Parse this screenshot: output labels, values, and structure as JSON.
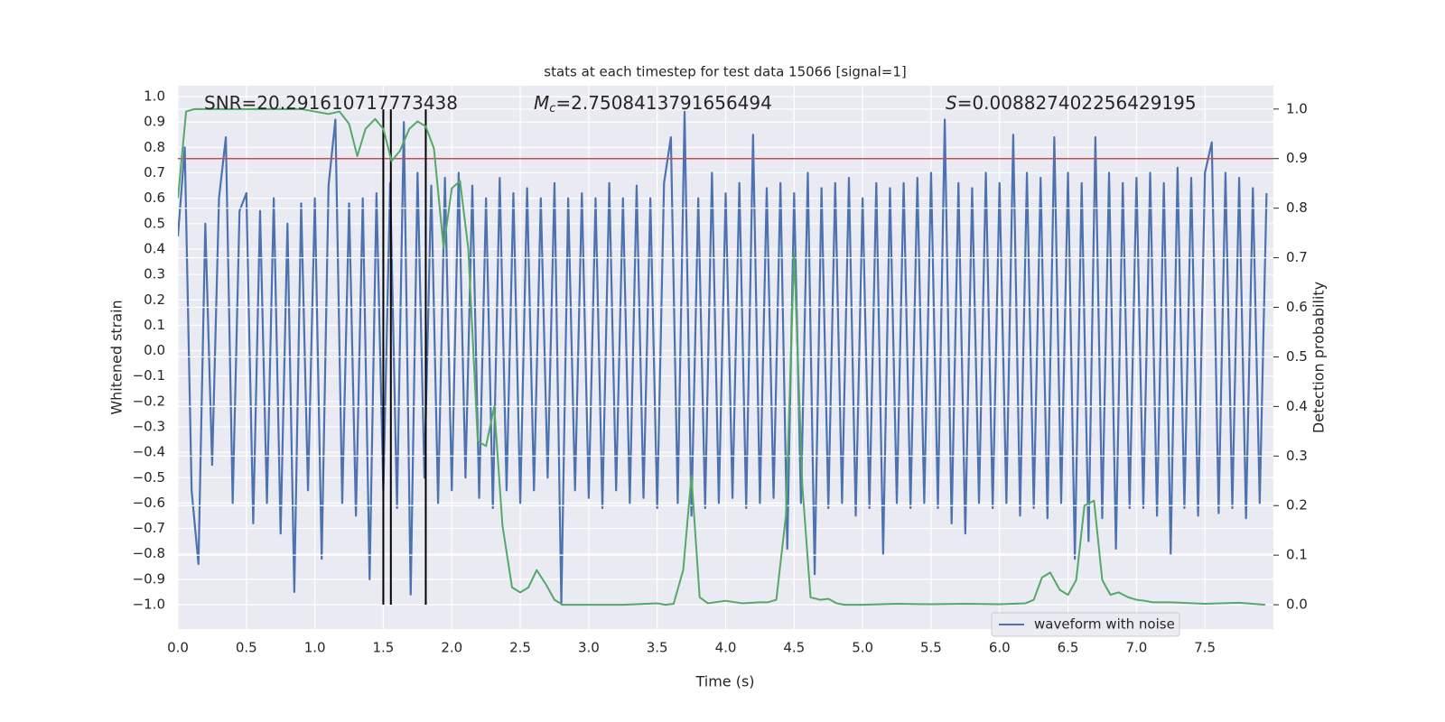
{
  "chart_data": {
    "type": "line",
    "title": "stats at each timestep for test data 15066 [signal=1]",
    "x_label": "Time (s)",
    "y_label": "Whitened strain",
    "y2_label": "Detection probability",
    "annotations": [
      {
        "text": "SNR=20.291610717773438"
      },
      {
        "symbol": "M",
        "subscript": "c",
        "text": "=2.7508413791656494"
      },
      {
        "symbol": "S",
        "text": "=0.008827402256429195"
      }
    ],
    "xlim": [
      0,
      8
    ],
    "ylim": [
      -1.096,
      1.043
    ],
    "y2lim": [
      -0.049,
      1.047
    ],
    "xticks": [
      {
        "value": 0,
        "label": "0.0"
      },
      {
        "value": 0.5,
        "label": "0.5"
      },
      {
        "value": 1,
        "label": "1.0"
      },
      {
        "value": 1.5,
        "label": "1.5"
      },
      {
        "value": 2,
        "label": "2.0"
      },
      {
        "value": 2.5,
        "label": "2.5"
      },
      {
        "value": 3,
        "label": "3.0"
      },
      {
        "value": 3.5,
        "label": "3.5"
      },
      {
        "value": 4,
        "label": "4.0"
      },
      {
        "value": 4.5,
        "label": "4.5"
      },
      {
        "value": 5,
        "label": "5.0"
      },
      {
        "value": 5.5,
        "label": "5.5"
      },
      {
        "value": 6,
        "label": "6.0"
      },
      {
        "value": 6.5,
        "label": "6.5"
      },
      {
        "value": 7,
        "label": "7.0"
      },
      {
        "value": 7.5,
        "label": "7.5"
      }
    ],
    "yticks": [
      {
        "value": -1,
        "label": "−1.0"
      },
      {
        "value": -0.9,
        "label": "−0.9"
      },
      {
        "value": -0.8,
        "label": "−0.8"
      },
      {
        "value": -0.7,
        "label": "−0.7"
      },
      {
        "value": -0.6,
        "label": "−0.6"
      },
      {
        "value": -0.5,
        "label": "−0.5"
      },
      {
        "value": -0.4,
        "label": "−0.4"
      },
      {
        "value": -0.3,
        "label": "−0.3"
      },
      {
        "value": -0.2,
        "label": "−0.2"
      },
      {
        "value": -0.1,
        "label": "−0.1"
      },
      {
        "value": 0,
        "label": "0.0"
      },
      {
        "value": 0.1,
        "label": "0.1"
      },
      {
        "value": 0.2,
        "label": "0.2"
      },
      {
        "value": 0.3,
        "label": "0.3"
      },
      {
        "value": 0.4,
        "label": "0.4"
      },
      {
        "value": 0.5,
        "label": "0.5"
      },
      {
        "value": 0.6,
        "label": "0.6"
      },
      {
        "value": 0.7,
        "label": "0.7"
      },
      {
        "value": 0.8,
        "label": "0.8"
      },
      {
        "value": 0.9,
        "label": "0.9"
      },
      {
        "value": 1,
        "label": "1.0"
      }
    ],
    "y2ticks": [
      {
        "value": 0,
        "label": "0.0"
      },
      {
        "value": 0.1,
        "label": "0.1"
      },
      {
        "value": 0.2,
        "label": "0.2"
      },
      {
        "value": 0.3,
        "label": "0.3"
      },
      {
        "value": 0.4,
        "label": "0.4"
      },
      {
        "value": 0.5,
        "label": "0.5"
      },
      {
        "value": 0.6,
        "label": "0.6"
      },
      {
        "value": 0.7,
        "label": "0.7"
      },
      {
        "value": 0.8,
        "label": "0.8"
      },
      {
        "value": 0.9,
        "label": "0.9"
      },
      {
        "value": 1,
        "label": "1.0"
      }
    ],
    "grid": true,
    "legend_position": "lower right",
    "series": [
      {
        "name": "waveform with noise",
        "color": "#4c72b0",
        "x": [
          0,
          0.05,
          0.1,
          0.15,
          0.2,
          0.25,
          0.3,
          0.35,
          0.4,
          0.45,
          0.5,
          0.55,
          0.6,
          0.65,
          0.7,
          0.75,
          0.8,
          0.85,
          0.9,
          0.95,
          1,
          1.05,
          1.1,
          1.15,
          1.2,
          1.25,
          1.3,
          1.35,
          1.4,
          1.45,
          1.5,
          1.55,
          1.6,
          1.65,
          1.7,
          1.75,
          1.8,
          1.85,
          1.9,
          1.95,
          2,
          2.05,
          2.1,
          2.15,
          2.2,
          2.25,
          2.3,
          2.35,
          2.4,
          2.45,
          2.5,
          2.55,
          2.6,
          2.65,
          2.7,
          2.75,
          2.8,
          2.85,
          2.9,
          2.95,
          3,
          3.05,
          3.1,
          3.15,
          3.2,
          3.25,
          3.3,
          3.35,
          3.4,
          3.45,
          3.5,
          3.55,
          3.6,
          3.65,
          3.7,
          3.75,
          3.8,
          3.85,
          3.9,
          3.95,
          4,
          4.05,
          4.1,
          4.15,
          4.2,
          4.25,
          4.3,
          4.35,
          4.4,
          4.45,
          4.5,
          4.55,
          4.6,
          4.65,
          4.7,
          4.75,
          4.8,
          4.85,
          4.9,
          4.95,
          5,
          5.05,
          5.1,
          5.15,
          5.2,
          5.25,
          5.3,
          5.35,
          5.4,
          5.45,
          5.5,
          5.55,
          5.6,
          5.65,
          5.7,
          5.75,
          5.8,
          5.85,
          5.9,
          5.95,
          6,
          6.05,
          6.1,
          6.15,
          6.2,
          6.25,
          6.3,
          6.35,
          6.4,
          6.45,
          6.5,
          6.55,
          6.6,
          6.65,
          6.7,
          6.75,
          6.8,
          6.85,
          6.9,
          6.95,
          7,
          7.05,
          7.1,
          7.15,
          7.2,
          7.25,
          7.3,
          7.35,
          7.4,
          7.45,
          7.5,
          7.55,
          7.6,
          7.65,
          7.7,
          7.75,
          7.8,
          7.85,
          7.9,
          7.95
        ],
        "values": [
          0.45,
          0.8,
          -0.55,
          -0.84,
          0.5,
          -0.45,
          0.6,
          0.84,
          -0.6,
          0.55,
          0.62,
          -0.68,
          0.55,
          -0.6,
          0.6,
          -0.72,
          0.5,
          -0.95,
          0.58,
          -0.55,
          0.6,
          -0.82,
          0.65,
          0.91,
          -0.6,
          0.58,
          -0.65,
          0.6,
          -0.9,
          0.62,
          -0.55,
          0.66,
          -0.62,
          0.9,
          -0.96,
          0.7,
          -0.5,
          0.65,
          -0.6,
          0.68,
          -0.55,
          0.7,
          -0.5,
          0.65,
          -0.58,
          0.6,
          -0.62,
          0.68,
          -0.55,
          0.62,
          -0.6,
          0.64,
          -0.55,
          0.6,
          -0.5,
          0.66,
          -1.0,
          0.6,
          -0.55,
          0.62,
          -0.58,
          0.6,
          -0.62,
          0.66,
          -0.55,
          0.6,
          -0.6,
          0.65,
          -0.58,
          0.6,
          -0.62,
          0.66,
          0.84,
          -0.6,
          0.94,
          -0.65,
          0.6,
          -0.62,
          0.7,
          -0.6,
          0.62,
          -0.58,
          0.66,
          -0.62,
          0.85,
          -0.6,
          0.64,
          -0.58,
          0.66,
          -0.78,
          0.62,
          -0.6,
          0.7,
          -0.88,
          0.64,
          -0.62,
          0.66,
          -0.6,
          0.68,
          -0.65,
          0.6,
          -0.62,
          0.66,
          -0.8,
          0.64,
          -0.6,
          0.66,
          -0.62,
          0.68,
          -0.6,
          0.7,
          -0.62,
          0.91,
          -0.68,
          0.66,
          -0.72,
          0.64,
          -0.6,
          0.7,
          -0.62,
          0.66,
          -0.6,
          0.85,
          -0.65,
          0.7,
          -0.62,
          0.68,
          -0.66,
          0.84,
          -0.6,
          0.7,
          -0.82,
          0.66,
          -0.75,
          0.84,
          -0.66,
          0.7,
          -0.78,
          0.66,
          -0.62,
          0.68,
          -0.62,
          0.7,
          -0.65,
          0.66,
          -0.8,
          0.72,
          -0.62,
          0.68,
          -0.65,
          0.7,
          0.82,
          -0.64,
          0.7,
          -0.62,
          0.68,
          -0.66,
          0.64,
          -0.6,
          0.62
        ]
      },
      {
        "color": "#55a868",
        "axis": "y2",
        "x": [
          0,
          0.06,
          0.12,
          0.25,
          0.5,
          0.75,
          0.9,
          1,
          1.1,
          1.18,
          1.25,
          1.31,
          1.37,
          1.44,
          1.5,
          1.56,
          1.62,
          1.69,
          1.75,
          1.81,
          1.87,
          1.94,
          2,
          2.06,
          2.12,
          2.19,
          2.25,
          2.31,
          2.37,
          2.44,
          2.5,
          2.56,
          2.62,
          2.69,
          2.75,
          2.81,
          2.87,
          3,
          3.25,
          3.5,
          3.56,
          3.62,
          3.69,
          3.75,
          3.81,
          3.87,
          4,
          4.12,
          4.25,
          4.31,
          4.37,
          4.44,
          4.5,
          4.56,
          4.62,
          4.69,
          4.75,
          4.81,
          4.87,
          5,
          5.25,
          5.5,
          5.75,
          6,
          6.19,
          6.25,
          6.31,
          6.37,
          6.44,
          6.5,
          6.56,
          6.62,
          6.69,
          6.75,
          6.81,
          6.87,
          6.94,
          7,
          7.06,
          7.12,
          7.25,
          7.5,
          7.75,
          7.94
        ],
        "values": [
          0.82,
          0.995,
          1,
          1,
          1,
          1,
          1,
          0.995,
          0.99,
          0.995,
          0.97,
          0.905,
          0.96,
          0.98,
          0.96,
          0.895,
          0.915,
          0.96,
          0.975,
          0.965,
          0.92,
          0.72,
          0.84,
          0.855,
          0.72,
          0.33,
          0.32,
          0.4,
          0.16,
          0.035,
          0.025,
          0.035,
          0.07,
          0.04,
          0.01,
          0,
          0,
          0,
          0,
          0.003,
          0,
          0.002,
          0.07,
          0.26,
          0.015,
          0.003,
          0.008,
          0.003,
          0.005,
          0.005,
          0.01,
          0.18,
          0.71,
          0.24,
          0.015,
          0.01,
          0.012,
          0.003,
          0,
          0,
          0.002,
          0.001,
          0.002,
          0.001,
          0.003,
          0.01,
          0.055,
          0.065,
          0.03,
          0.02,
          0.05,
          0.2,
          0.21,
          0.05,
          0.02,
          0.025,
          0.015,
          0.01,
          0.008,
          0.005,
          0.005,
          0.002,
          0.004,
          0
        ]
      }
    ],
    "hlines": [
      {
        "value": 0.9,
        "axis": "y2",
        "color": "#c44e52"
      }
    ],
    "vlines": {
      "values": [
        1.5,
        1.555,
        1.81
      ],
      "ymin": -1,
      "ymax": 0.95,
      "color": "#000000"
    }
  }
}
